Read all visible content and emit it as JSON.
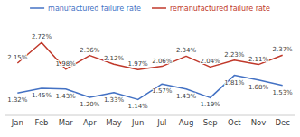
{
  "chart_data": {
    "type": "line",
    "categories": [
      "Jan",
      "Feb",
      "Mar",
      "Apr",
      "May",
      "Jun",
      "Jul",
      "Aug",
      "Sep",
      "Oct",
      "Nov",
      "Dec"
    ],
    "series": [
      {
        "name": "manufactured failure rate",
        "color": "#4472c4",
        "values": [
          1.32,
          1.45,
          1.43,
          1.2,
          1.33,
          1.14,
          1.57,
          1.43,
          1.19,
          1.81,
          1.68,
          1.53
        ],
        "value_labels": [
          "1.32%",
          "1.45%",
          "1.43%",
          "1.20%",
          "1.33%",
          "1.14%",
          "1.57%",
          "1.43%",
          "1.19%",
          "1.81%",
          "1.68%",
          "1.53%"
        ]
      },
      {
        "name": "remanufactured failure rate",
        "color": "#c0392b",
        "values": [
          2.15,
          2.72,
          1.98,
          2.36,
          2.12,
          1.97,
          2.06,
          2.34,
          2.04,
          2.23,
          2.11,
          2.37
        ],
        "value_labels": [
          "2.15%",
          "2.72%",
          "1.98%",
          "2.36%",
          "2.12%",
          "1.97%",
          "2.06%",
          "2.34%",
          "2.04%",
          "2.23%",
          "2.11%",
          "2.37%"
        ]
      }
    ],
    "ylim": [
      0.7,
      3.3
    ],
    "data_labels": true,
    "tick_labels": "x",
    "legend": "top",
    "grid": false
  }
}
